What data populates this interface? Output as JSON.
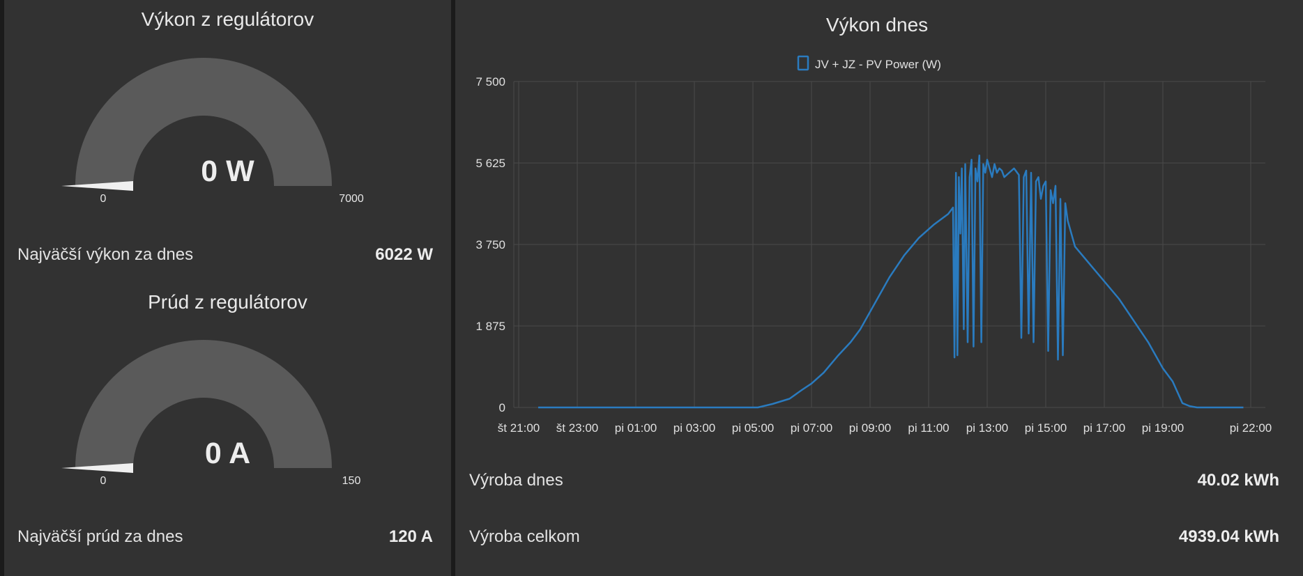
{
  "gauges": [
    {
      "title": "Výkon z regulátorov",
      "value_text": "0 W",
      "value": 0,
      "min": "0",
      "max": "7000",
      "stat_label": "Najväčší výkon za dnes",
      "stat_value": "6022 W"
    },
    {
      "title": "Prúd z regulátorov",
      "value_text": "0 A",
      "value": 0,
      "min": "0",
      "max": "150",
      "stat_label": "Najväčší prúd za dnes",
      "stat_value": "120 A"
    }
  ],
  "colors": {
    "card": "#323232",
    "background": "#1b1b1b",
    "gauge_track": "#5a5a5a",
    "needle": "#f0f0f0",
    "series": "#2a7bbf",
    "grid": "#4a4a4a"
  },
  "chart_data": {
    "type": "line",
    "title": "Výkon dnes",
    "legend": [
      "JV + JZ - PV Power (W)"
    ],
    "legend_placement": "top-center",
    "grid": true,
    "ylim": [
      0,
      7500
    ],
    "y_ticks": [
      {
        "value": 0,
        "label": "0"
      },
      {
        "value": 1875,
        "label": "1 875"
      },
      {
        "value": 3750,
        "label": "3 750"
      },
      {
        "value": 5625,
        "label": "5 625"
      },
      {
        "value": 7500,
        "label": "7 500"
      }
    ],
    "xlim": [
      "2024-01-03 20:50",
      "2024-01-04 22:30"
    ],
    "x_ticks": [
      {
        "time": "2024-01-03 21:00",
        "label": "št 21:00"
      },
      {
        "time": "2024-01-03 23:00",
        "label": "št 23:00"
      },
      {
        "time": "2024-01-04 01:00",
        "label": "pi 01:00"
      },
      {
        "time": "2024-01-04 03:00",
        "label": "pi 03:00"
      },
      {
        "time": "2024-01-04 05:00",
        "label": "pi 05:00"
      },
      {
        "time": "2024-01-04 07:00",
        "label": "pi 07:00"
      },
      {
        "time": "2024-01-04 09:00",
        "label": "pi 09:00"
      },
      {
        "time": "2024-01-04 11:00",
        "label": "pi 11:00"
      },
      {
        "time": "2024-01-04 13:00",
        "label": "pi 13:00"
      },
      {
        "time": "2024-01-04 15:00",
        "label": "pi 15:00"
      },
      {
        "time": "2024-01-04 17:00",
        "label": "pi 17:00"
      },
      {
        "time": "2024-01-04 19:00",
        "label": "pi 19:00"
      },
      {
        "time": "2024-01-04 22:00",
        "label": "pi 22:00"
      }
    ],
    "series": [
      {
        "name": "JV + JZ - PV Power (W)",
        "x": [
          "2024-01-03 21:40",
          "2024-01-04 05:10",
          "2024-01-04 05:40",
          "2024-01-04 06:15",
          "2024-01-04 06:40",
          "2024-01-04 07:00",
          "2024-01-04 07:25",
          "2024-01-04 07:55",
          "2024-01-04 08:20",
          "2024-01-04 08:40",
          "2024-01-04 09:10",
          "2024-01-04 09:40",
          "2024-01-04 10:10",
          "2024-01-04 10:40",
          "2024-01-04 11:10",
          "2024-01-04 11:40",
          "2024-01-04 11:50",
          "2024-01-04 11:53",
          "2024-01-04 11:56",
          "2024-01-04 11:59",
          "2024-01-04 12:02",
          "2024-01-04 12:05",
          "2024-01-04 12:08",
          "2024-01-04 12:12",
          "2024-01-04 12:15",
          "2024-01-04 12:20",
          "2024-01-04 12:24",
          "2024-01-04 12:28",
          "2024-01-04 12:32",
          "2024-01-04 12:36",
          "2024-01-04 12:40",
          "2024-01-04 12:44",
          "2024-01-04 12:48",
          "2024-01-04 12:52",
          "2024-01-04 12:56",
          "2024-01-04 13:00",
          "2024-01-04 13:05",
          "2024-01-04 13:10",
          "2024-01-04 13:15",
          "2024-01-04 13:20",
          "2024-01-04 13:25",
          "2024-01-04 13:30",
          "2024-01-04 13:35",
          "2024-01-04 13:45",
          "2024-01-04 13:55",
          "2024-01-04 14:05",
          "2024-01-04 14:10",
          "2024-01-04 14:15",
          "2024-01-04 14:20",
          "2024-01-04 14:25",
          "2024-01-04 14:30",
          "2024-01-04 14:35",
          "2024-01-04 14:40",
          "2024-01-04 14:45",
          "2024-01-04 14:50",
          "2024-01-04 14:55",
          "2024-01-04 15:00",
          "2024-01-04 15:05",
          "2024-01-04 15:10",
          "2024-01-04 15:15",
          "2024-01-04 15:20",
          "2024-01-04 15:25",
          "2024-01-04 15:30",
          "2024-01-04 15:35",
          "2024-01-04 15:40",
          "2024-01-04 15:45",
          "2024-01-04 15:50",
          "2024-01-04 16:00",
          "2024-01-04 16:30",
          "2024-01-04 17:00",
          "2024-01-04 17:30",
          "2024-01-04 18:00",
          "2024-01-04 18:30",
          "2024-01-04 19:00",
          "2024-01-04 19:20",
          "2024-01-04 19:40",
          "2024-01-04 19:55",
          "2024-01-04 20:10",
          "2024-01-04 20:30",
          "2024-01-04 21:00",
          "2024-01-04 21:45"
        ],
        "y": [
          0,
          0,
          80,
          200,
          400,
          550,
          800,
          1200,
          1500,
          1800,
          2400,
          3000,
          3500,
          3900,
          4200,
          4450,
          4600,
          1150,
          5400,
          1200,
          5300,
          4000,
          5500,
          1800,
          5600,
          1500,
          5300,
          5700,
          1400,
          5500,
          5200,
          5800,
          1500,
          5600,
          5400,
          5700,
          5500,
          5300,
          5600,
          5400,
          5500,
          5450,
          5300,
          5400,
          5500,
          5350,
          1600,
          5300,
          5450,
          1700,
          5400,
          1500,
          5200,
          5300,
          4800,
          5100,
          5200,
          1300,
          5000,
          4700,
          5100,
          1100,
          4800,
          1200,
          4700,
          4300,
          4100,
          3700,
          3300,
          2900,
          2500,
          2000,
          1500,
          900,
          600,
          100,
          30,
          0,
          0,
          0,
          0
        ]
      }
    ]
  },
  "right_rows": [
    {
      "label": "Výroba dnes",
      "value": "40.02 kWh"
    },
    {
      "label": "Výroba celkom",
      "value": "4939.04 kWh"
    }
  ]
}
